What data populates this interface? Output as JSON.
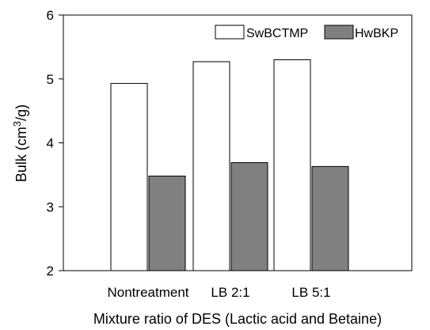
{
  "chart_data": {
    "type": "bar",
    "categories": [
      "Nontreatment",
      "LB 2:1",
      "LB 5:1"
    ],
    "series": [
      {
        "name": "SwBCTMP",
        "values": [
          4.93,
          5.27,
          5.3
        ],
        "color": "#ffffff"
      },
      {
        "name": "HwBKP",
        "values": [
          3.48,
          3.69,
          3.63
        ],
        "color": "#808080"
      }
    ],
    "xlabel": "Mixture ratio of DES (Lactic acid and Betaine)",
    "ylabel_main": "Bulk (cm",
    "ylabel_sup": "3",
    "ylabel_tail": "/g)",
    "ylim": [
      2,
      6
    ],
    "yticks": [
      2,
      3,
      4,
      5,
      6
    ],
    "grid": false,
    "legend_position": "top-right"
  }
}
